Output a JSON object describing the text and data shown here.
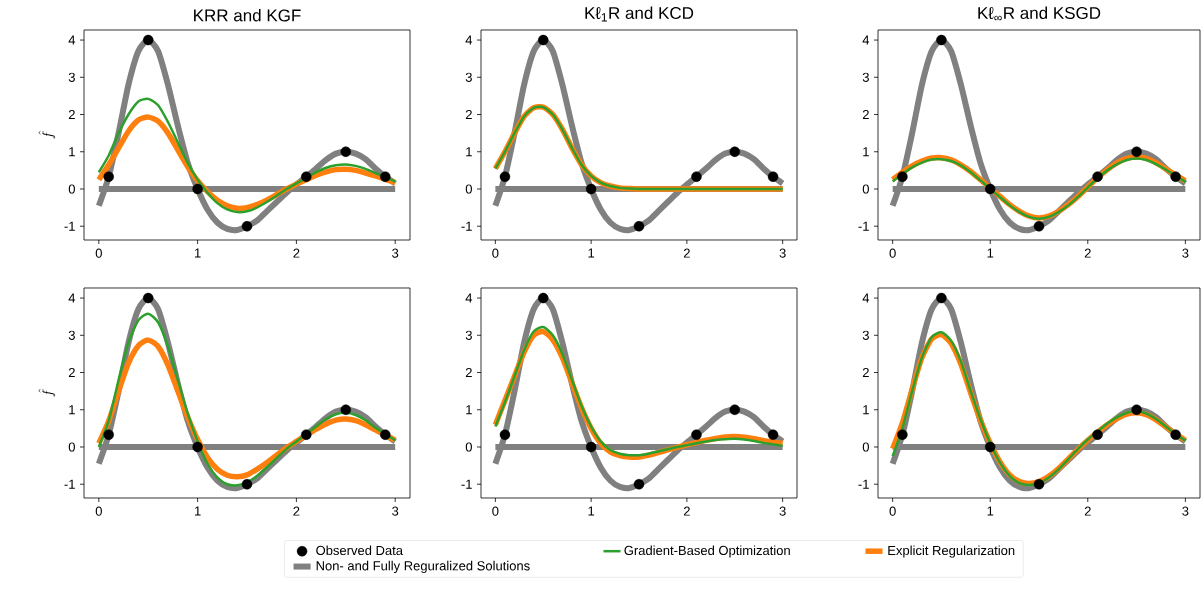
{
  "chart_data": [
    {
      "type": "line",
      "title": "KRR and KGF",
      "ylabel": "\\hat{f}",
      "xlim": [
        -0.15,
        3.15
      ],
      "ylim": [
        -1.37,
        4.27
      ],
      "xticks": [
        0,
        1,
        2,
        3
      ],
      "yticks": [
        -1,
        0,
        1,
        2,
        3,
        4
      ],
      "legend": "bottom",
      "series": [
        {
          "name": "Observed Data",
          "type": "scatter",
          "marker": "circle",
          "color": "#000000",
          "x": [
            0.1,
            0.5,
            1.0,
            1.5,
            2.1,
            2.5,
            2.9
          ],
          "values": [
            0.33,
            4,
            0,
            -1,
            0.33,
            1,
            0.33
          ]
        },
        {
          "name": "Non- and Fully Reguralized Solutions",
          "color": "#808080",
          "x": [
            0,
            0.1,
            0.2,
            0.3,
            0.4,
            0.5,
            0.6,
            0.7,
            0.8,
            0.9,
            1.0,
            1.1,
            1.2,
            1.3,
            1.4,
            1.5,
            1.6,
            1.7,
            1.8,
            1.9,
            2.0,
            2.1,
            2.2,
            2.3,
            2.4,
            2.5,
            2.6,
            2.7,
            2.8,
            2.9,
            3.0
          ],
          "values": [
            -0.45,
            0.33,
            1.5,
            2.8,
            3.7,
            4.0,
            3.7,
            2.8,
            1.7,
            0.7,
            0,
            -0.55,
            -0.9,
            -1.07,
            -1.1,
            -1.0,
            -0.85,
            -0.6,
            -0.35,
            -0.1,
            0.12,
            0.33,
            0.55,
            0.78,
            0.95,
            1.0,
            0.95,
            0.8,
            0.55,
            0.33,
            0.15
          ]
        },
        {
          "color": "#808080",
          "x": [
            0,
            3
          ],
          "values": [
            0,
            0
          ]
        },
        {
          "name": "Gradient-Based Optimization",
          "color": "#2ca02c",
          "x": [
            0,
            0.1,
            0.2,
            0.3,
            0.4,
            0.5,
            0.6,
            0.7,
            0.8,
            0.9,
            1.0,
            1.1,
            1.2,
            1.3,
            1.4,
            1.5,
            1.6,
            1.7,
            1.8,
            1.9,
            2.0,
            2.1,
            2.2,
            2.3,
            2.4,
            2.5,
            2.6,
            2.7,
            2.8,
            2.9,
            3.0
          ],
          "values": [
            0.45,
            0.9,
            1.5,
            2.0,
            2.35,
            2.42,
            2.25,
            1.8,
            1.25,
            0.7,
            0.25,
            -0.1,
            -0.38,
            -0.55,
            -0.62,
            -0.6,
            -0.5,
            -0.35,
            -0.18,
            0,
            0.15,
            0.3,
            0.45,
            0.57,
            0.64,
            0.66,
            0.62,
            0.54,
            0.43,
            0.32,
            0.2
          ]
        },
        {
          "name": "Explicit Regularization",
          "color": "#ff7f0e",
          "x": [
            0,
            0.1,
            0.2,
            0.3,
            0.4,
            0.5,
            0.6,
            0.7,
            0.8,
            0.9,
            1.0,
            1.1,
            1.2,
            1.3,
            1.4,
            1.5,
            1.6,
            1.7,
            1.8,
            1.9,
            2.0,
            2.1,
            2.2,
            2.3,
            2.4,
            2.5,
            2.6,
            2.7,
            2.8,
            2.9,
            3.0
          ],
          "values": [
            0.25,
            0.65,
            1.1,
            1.55,
            1.85,
            1.93,
            1.82,
            1.5,
            1.05,
            0.6,
            0.22,
            -0.07,
            -0.3,
            -0.45,
            -0.52,
            -0.5,
            -0.42,
            -0.3,
            -0.15,
            0,
            0.13,
            0.25,
            0.37,
            0.46,
            0.52,
            0.53,
            0.5,
            0.43,
            0.35,
            0.26,
            0.17
          ]
        }
      ]
    },
    {
      "type": "line",
      "title": "Kℓ$_{1}$R and KCD",
      "xlim": [
        -0.15,
        3.15
      ],
      "ylim": [
        -1.37,
        4.27
      ],
      "xticks": [
        0,
        1,
        2,
        3
      ],
      "yticks": [
        -1,
        0,
        1,
        2,
        3,
        4
      ],
      "series": [
        {
          "type": "scatter",
          "marker": "circle",
          "color": "#000000",
          "x": [
            0.1,
            0.5,
            1.0,
            1.5,
            2.1,
            2.5,
            2.9
          ],
          "values": [
            0.33,
            4,
            0,
            -1,
            0.33,
            1,
            0.33
          ]
        },
        {
          "color": "#808080",
          "x": [
            0,
            0.1,
            0.2,
            0.3,
            0.4,
            0.5,
            0.6,
            0.7,
            0.8,
            0.9,
            1.0,
            1.1,
            1.2,
            1.3,
            1.4,
            1.5,
            1.6,
            1.7,
            1.8,
            1.9,
            2.0,
            2.1,
            2.2,
            2.3,
            2.4,
            2.5,
            2.6,
            2.7,
            2.8,
            2.9,
            3.0
          ],
          "values": [
            -0.45,
            0.33,
            1.5,
            2.8,
            3.7,
            4.0,
            3.7,
            2.8,
            1.7,
            0.7,
            0,
            -0.55,
            -0.9,
            -1.07,
            -1.1,
            -1.0,
            -0.85,
            -0.6,
            -0.35,
            -0.1,
            0.12,
            0.33,
            0.55,
            0.78,
            0.95,
            1.0,
            0.95,
            0.8,
            0.55,
            0.33,
            0.15
          ]
        },
        {
          "color": "#808080",
          "x": [
            0,
            3
          ],
          "values": [
            0,
            0
          ]
        },
        {
          "color": "#2ca02c",
          "x": [
            0,
            0.1,
            0.2,
            0.3,
            0.4,
            0.5,
            0.6,
            0.7,
            0.8,
            0.9,
            1.0,
            1.1,
            1.2,
            1.3,
            1.4,
            1.5,
            1.75,
            2.0,
            2.5,
            3.0
          ],
          "values": [
            0.55,
            1.0,
            1.5,
            1.95,
            2.18,
            2.2,
            2.0,
            1.6,
            1.1,
            0.65,
            0.35,
            0.17,
            0.08,
            0.03,
            0.01,
            0,
            0,
            0,
            0,
            0
          ]
        },
        {
          "color": "#ff7f0e",
          "x": [
            0,
            0.1,
            0.2,
            0.3,
            0.4,
            0.5,
            0.6,
            0.7,
            0.8,
            0.9,
            1.0,
            1.1,
            1.2,
            1.3,
            1.4,
            1.5,
            1.75,
            2.0,
            2.5,
            3.0
          ],
          "values": [
            0.55,
            1.0,
            1.5,
            1.95,
            2.18,
            2.2,
            2.0,
            1.6,
            1.1,
            0.65,
            0.35,
            0.17,
            0.08,
            0.03,
            0.01,
            0,
            0,
            0,
            0,
            0
          ]
        }
      ]
    },
    {
      "type": "line",
      "title": "Kℓ$_{∞}$R and KSGD",
      "xlim": [
        -0.15,
        3.15
      ],
      "ylim": [
        -1.37,
        4.27
      ],
      "xticks": [
        0,
        1,
        2,
        3
      ],
      "yticks": [
        -1,
        0,
        1,
        2,
        3,
        4
      ],
      "series": [
        {
          "type": "scatter",
          "marker": "circle",
          "color": "#000000",
          "x": [
            0.1,
            0.5,
            1.0,
            1.5,
            2.1,
            2.5,
            2.9
          ],
          "values": [
            0.33,
            4,
            0,
            -1,
            0.33,
            1,
            0.33
          ]
        },
        {
          "color": "#808080",
          "x": [
            0,
            0.1,
            0.2,
            0.3,
            0.4,
            0.5,
            0.6,
            0.7,
            0.8,
            0.9,
            1.0,
            1.1,
            1.2,
            1.3,
            1.4,
            1.5,
            1.6,
            1.7,
            1.8,
            1.9,
            2.0,
            2.1,
            2.2,
            2.3,
            2.4,
            2.5,
            2.6,
            2.7,
            2.8,
            2.9,
            3.0
          ],
          "values": [
            -0.45,
            0.33,
            1.5,
            2.8,
            3.7,
            4.0,
            3.7,
            2.8,
            1.7,
            0.7,
            0,
            -0.55,
            -0.9,
            -1.07,
            -1.1,
            -1.0,
            -0.85,
            -0.6,
            -0.35,
            -0.1,
            0.12,
            0.33,
            0.55,
            0.78,
            0.95,
            1.0,
            0.95,
            0.8,
            0.55,
            0.33,
            0.15
          ]
        },
        {
          "color": "#808080",
          "x": [
            0,
            3
          ],
          "values": [
            0,
            0
          ]
        },
        {
          "color": "#2ca02c",
          "x": [
            0,
            0.1,
            0.2,
            0.3,
            0.4,
            0.5,
            0.6,
            0.7,
            0.8,
            0.9,
            1.0,
            1.1,
            1.2,
            1.3,
            1.4,
            1.5,
            1.6,
            1.7,
            1.8,
            1.9,
            2.0,
            2.1,
            2.2,
            2.3,
            2.4,
            2.5,
            2.6,
            2.7,
            2.8,
            2.9,
            3.0
          ],
          "values": [
            0.2,
            0.4,
            0.58,
            0.71,
            0.79,
            0.8,
            0.75,
            0.63,
            0.45,
            0.23,
            0.0,
            -0.22,
            -0.44,
            -0.62,
            -0.75,
            -0.8,
            -0.75,
            -0.62,
            -0.44,
            -0.21,
            0.04,
            0.29,
            0.5,
            0.67,
            0.78,
            0.82,
            0.78,
            0.67,
            0.52,
            0.35,
            0.2
          ]
        },
        {
          "color": "#ff7f0e",
          "x": [
            0,
            0.1,
            0.2,
            0.3,
            0.4,
            0.5,
            0.6,
            0.7,
            0.8,
            0.9,
            1.0,
            1.1,
            1.2,
            1.3,
            1.4,
            1.5,
            1.6,
            1.7,
            1.8,
            1.9,
            2.0,
            2.1,
            2.2,
            2.3,
            2.4,
            2.5,
            2.6,
            2.7,
            2.8,
            2.9,
            3.0
          ],
          "values": [
            0.25,
            0.45,
            0.62,
            0.75,
            0.83,
            0.84,
            0.78,
            0.65,
            0.47,
            0.25,
            0.02,
            -0.2,
            -0.42,
            -0.6,
            -0.73,
            -0.78,
            -0.73,
            -0.6,
            -0.42,
            -0.2,
            0.05,
            0.3,
            0.52,
            0.7,
            0.82,
            0.86,
            0.82,
            0.7,
            0.54,
            0.37,
            0.22
          ]
        }
      ]
    },
    {
      "type": "line",
      "ylabel": "\\hat{f}",
      "xlim": [
        -0.15,
        3.15
      ],
      "ylim": [
        -1.37,
        4.27
      ],
      "xticks": [
        0,
        1,
        2,
        3
      ],
      "yticks": [
        -1,
        0,
        1,
        2,
        3,
        4
      ],
      "series": [
        {
          "type": "scatter",
          "marker": "circle",
          "color": "#000000",
          "x": [
            0.1,
            0.5,
            1.0,
            1.5,
            2.1,
            2.5,
            2.9
          ],
          "values": [
            0.33,
            4,
            0,
            -1,
            0.33,
            1,
            0.33
          ]
        },
        {
          "color": "#808080",
          "x": [
            0,
            0.1,
            0.2,
            0.3,
            0.4,
            0.5,
            0.6,
            0.7,
            0.8,
            0.9,
            1.0,
            1.1,
            1.2,
            1.3,
            1.4,
            1.5,
            1.6,
            1.7,
            1.8,
            1.9,
            2.0,
            2.1,
            2.2,
            2.3,
            2.4,
            2.5,
            2.6,
            2.7,
            2.8,
            2.9,
            3.0
          ],
          "values": [
            -0.45,
            0.33,
            1.5,
            2.8,
            3.7,
            4.0,
            3.7,
            2.8,
            1.7,
            0.7,
            0,
            -0.55,
            -0.9,
            -1.07,
            -1.1,
            -1.0,
            -0.85,
            -0.6,
            -0.35,
            -0.1,
            0.12,
            0.33,
            0.55,
            0.78,
            0.95,
            1.0,
            0.95,
            0.8,
            0.55,
            0.33,
            0.15
          ]
        },
        {
          "color": "#808080",
          "x": [
            0,
            3
          ],
          "values": [
            0,
            0
          ]
        },
        {
          "color": "#2ca02c",
          "x": [
            0,
            0.1,
            0.2,
            0.3,
            0.4,
            0.5,
            0.6,
            0.7,
            0.8,
            0.9,
            1.0,
            1.1,
            1.2,
            1.3,
            1.4,
            1.5,
            1.6,
            1.7,
            1.8,
            1.9,
            2.0,
            2.1,
            2.2,
            2.3,
            2.4,
            2.5,
            2.6,
            2.7,
            2.8,
            2.9,
            3.0
          ],
          "values": [
            0.0,
            0.7,
            1.8,
            2.8,
            3.4,
            3.58,
            3.35,
            2.7,
            1.8,
            0.9,
            0.15,
            -0.45,
            -0.82,
            -1.0,
            -1.03,
            -0.95,
            -0.78,
            -0.55,
            -0.3,
            -0.05,
            0.15,
            0.35,
            0.55,
            0.75,
            0.88,
            0.92,
            0.86,
            0.72,
            0.52,
            0.35,
            0.18
          ]
        },
        {
          "color": "#ff7f0e",
          "x": [
            0,
            0.1,
            0.2,
            0.3,
            0.4,
            0.5,
            0.6,
            0.7,
            0.8,
            0.9,
            1.0,
            1.1,
            1.2,
            1.3,
            1.4,
            1.5,
            1.6,
            1.7,
            1.8,
            1.9,
            2.0,
            2.1,
            2.2,
            2.3,
            2.4,
            2.5,
            2.6,
            2.7,
            2.8,
            2.9,
            3.0
          ],
          "values": [
            0.1,
            0.7,
            1.5,
            2.25,
            2.72,
            2.87,
            2.7,
            2.2,
            1.5,
            0.8,
            0.2,
            -0.28,
            -0.6,
            -0.76,
            -0.8,
            -0.75,
            -0.6,
            -0.42,
            -0.22,
            -0.02,
            0.15,
            0.32,
            0.48,
            0.62,
            0.72,
            0.75,
            0.71,
            0.6,
            0.46,
            0.32,
            0.18
          ]
        }
      ]
    },
    {
      "type": "line",
      "xlim": [
        -0.15,
        3.15
      ],
      "ylim": [
        -1.37,
        4.27
      ],
      "xticks": [
        0,
        1,
        2,
        3
      ],
      "yticks": [
        -1,
        0,
        1,
        2,
        3,
        4
      ],
      "series": [
        {
          "type": "scatter",
          "marker": "circle",
          "color": "#000000",
          "x": [
            0.1,
            0.5,
            1.0,
            1.5,
            2.1,
            2.5,
            2.9
          ],
          "values": [
            0.33,
            4,
            0,
            -1,
            0.33,
            1,
            0.33
          ]
        },
        {
          "color": "#808080",
          "x": [
            0,
            0.1,
            0.2,
            0.3,
            0.4,
            0.5,
            0.6,
            0.7,
            0.8,
            0.9,
            1.0,
            1.1,
            1.2,
            1.3,
            1.4,
            1.5,
            1.6,
            1.7,
            1.8,
            1.9,
            2.0,
            2.1,
            2.2,
            2.3,
            2.4,
            2.5,
            2.6,
            2.7,
            2.8,
            2.9,
            3.0
          ],
          "values": [
            -0.45,
            0.33,
            1.5,
            2.8,
            3.7,
            4.0,
            3.7,
            2.8,
            1.7,
            0.7,
            0,
            -0.55,
            -0.9,
            -1.07,
            -1.1,
            -1.0,
            -0.85,
            -0.6,
            -0.35,
            -0.1,
            0.12,
            0.33,
            0.55,
            0.78,
            0.95,
            1.0,
            0.95,
            0.8,
            0.55,
            0.33,
            0.15
          ]
        },
        {
          "color": "#808080",
          "x": [
            0,
            3
          ],
          "values": [
            0,
            0
          ]
        },
        {
          "color": "#2ca02c",
          "x": [
            0,
            0.1,
            0.2,
            0.3,
            0.4,
            0.5,
            0.6,
            0.7,
            0.8,
            0.9,
            1.0,
            1.1,
            1.2,
            1.3,
            1.4,
            1.5,
            1.6,
            1.7,
            1.8,
            1.9,
            2.0,
            2.1,
            2.2,
            2.3,
            2.4,
            2.5,
            2.6,
            2.7,
            2.8,
            2.9,
            3.0
          ],
          "values": [
            0.55,
            1.2,
            1.9,
            2.6,
            3.1,
            3.22,
            3.0,
            2.5,
            1.8,
            1.1,
            0.55,
            0.15,
            -0.08,
            -0.18,
            -0.22,
            -0.22,
            -0.18,
            -0.12,
            -0.06,
            0,
            0.05,
            0.1,
            0.15,
            0.19,
            0.21,
            0.22,
            0.2,
            0.16,
            0.11,
            0.07,
            0.03
          ]
        },
        {
          "color": "#ff7f0e",
          "x": [
            0,
            0.1,
            0.2,
            0.3,
            0.4,
            0.5,
            0.6,
            0.7,
            0.8,
            0.9,
            1.0,
            1.1,
            1.2,
            1.3,
            1.4,
            1.5,
            1.6,
            1.7,
            1.8,
            1.9,
            2.0,
            2.1,
            2.2,
            2.3,
            2.4,
            2.5,
            2.6,
            2.7,
            2.8,
            2.9,
            3.0
          ],
          "values": [
            0.6,
            1.25,
            1.9,
            2.55,
            3.0,
            3.1,
            2.88,
            2.4,
            1.72,
            1.05,
            0.5,
            0.1,
            -0.13,
            -0.23,
            -0.27,
            -0.27,
            -0.22,
            -0.15,
            -0.08,
            -0.01,
            0.06,
            0.12,
            0.18,
            0.23,
            0.27,
            0.28,
            0.26,
            0.22,
            0.17,
            0.13,
            0.1
          ]
        }
      ]
    },
    {
      "type": "line",
      "xlim": [
        -0.15,
        3.15
      ],
      "ylim": [
        -1.37,
        4.27
      ],
      "xticks": [
        0,
        1,
        2,
        3
      ],
      "yticks": [
        -1,
        0,
        1,
        2,
        3,
        4
      ],
      "series": [
        {
          "type": "scatter",
          "marker": "circle",
          "color": "#000000",
          "x": [
            0.1,
            0.5,
            1.0,
            1.5,
            2.1,
            2.5,
            2.9
          ],
          "values": [
            0.33,
            4,
            0,
            -1,
            0.33,
            1,
            0.33
          ]
        },
        {
          "color": "#808080",
          "x": [
            0,
            0.1,
            0.2,
            0.3,
            0.4,
            0.5,
            0.6,
            0.7,
            0.8,
            0.9,
            1.0,
            1.1,
            1.2,
            1.3,
            1.4,
            1.5,
            1.6,
            1.7,
            1.8,
            1.9,
            2.0,
            2.1,
            2.2,
            2.3,
            2.4,
            2.5,
            2.6,
            2.7,
            2.8,
            2.9,
            3.0
          ],
          "values": [
            -0.45,
            0.33,
            1.5,
            2.8,
            3.7,
            4.0,
            3.7,
            2.8,
            1.7,
            0.7,
            0,
            -0.55,
            -0.9,
            -1.07,
            -1.1,
            -1.0,
            -0.85,
            -0.6,
            -0.35,
            -0.1,
            0.12,
            0.33,
            0.55,
            0.78,
            0.95,
            1.0,
            0.95,
            0.8,
            0.55,
            0.33,
            0.15
          ]
        },
        {
          "color": "#808080",
          "x": [
            0,
            3
          ],
          "values": [
            0,
            0
          ]
        },
        {
          "color": "#2ca02c",
          "x": [
            0,
            0.1,
            0.2,
            0.3,
            0.4,
            0.5,
            0.6,
            0.7,
            0.8,
            0.9,
            1.0,
            1.1,
            1.2,
            1.3,
            1.4,
            1.5,
            1.6,
            1.7,
            1.8,
            1.9,
            2.0,
            2.1,
            2.2,
            2.3,
            2.4,
            2.5,
            2.6,
            2.7,
            2.8,
            2.9,
            3.0
          ],
          "values": [
            -0.25,
            0.5,
            1.5,
            2.4,
            2.95,
            3.08,
            2.85,
            2.3,
            1.5,
            0.75,
            0.1,
            -0.42,
            -0.78,
            -0.97,
            -1.02,
            -0.97,
            -0.82,
            -0.6,
            -0.33,
            -0.05,
            0.2,
            0.42,
            0.63,
            0.8,
            0.92,
            0.96,
            0.9,
            0.75,
            0.55,
            0.35,
            0.17
          ]
        },
        {
          "color": "#ff7f0e",
          "x": [
            0,
            0.1,
            0.2,
            0.3,
            0.4,
            0.5,
            0.6,
            0.7,
            0.8,
            0.9,
            1.0,
            1.1,
            1.2,
            1.3,
            1.4,
            1.5,
            1.6,
            1.7,
            1.8,
            1.9,
            2.0,
            2.1,
            2.2,
            2.3,
            2.4,
            2.5,
            2.6,
            2.7,
            2.8,
            2.9,
            3.0
          ],
          "values": [
            -0.05,
            0.65,
            1.55,
            2.4,
            2.9,
            3.02,
            2.78,
            2.22,
            1.45,
            0.72,
            0.1,
            -0.4,
            -0.75,
            -0.93,
            -0.98,
            -0.93,
            -0.79,
            -0.58,
            -0.32,
            -0.06,
            0.18,
            0.4,
            0.6,
            0.76,
            0.88,
            0.92,
            0.87,
            0.73,
            0.54,
            0.35,
            0.18
          ]
        }
      ]
    }
  ]
}
